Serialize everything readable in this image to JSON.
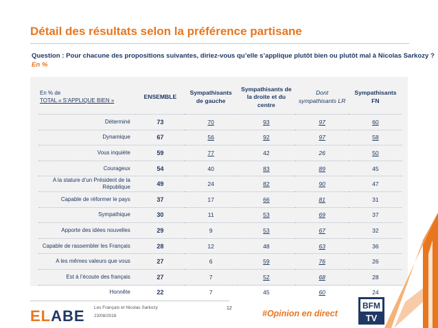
{
  "title": "Détail des résultats selon la préférence partisane",
  "question": "Question : Pour chacune des propositions suivantes, diriez-vous qu’elle s’applique plutôt bien ou plutôt mal à Nicolas Sarkozy ?",
  "question_sub": "En %",
  "table": {
    "header_line1": "En % de",
    "header_line2": "TOTAL « S’APPLIQUE BIEN »",
    "columns": [
      "ENSEMBLE",
      "Sympathisants de gauche",
      "Sympathisants de la droite et du centre",
      "Dont sympathisants LR",
      "Sympathisants FN"
    ],
    "rows": [
      {
        "label": "Déterminé",
        "values": [
          "73",
          "70",
          "93",
          "97",
          "60"
        ],
        "underline": [
          false,
          true,
          true,
          true,
          true
        ]
      },
      {
        "label": "Dynamique",
        "values": [
          "67",
          "56",
          "92",
          "97",
          "58"
        ],
        "underline": [
          false,
          true,
          true,
          true,
          true
        ]
      },
      {
        "label": "Vous inquiète",
        "values": [
          "59",
          "77",
          "42",
          "26",
          "50"
        ],
        "underline": [
          false,
          true,
          false,
          false,
          true
        ]
      },
      {
        "label": "Courageux",
        "values": [
          "54",
          "40",
          "83",
          "89",
          "45"
        ],
        "underline": [
          false,
          false,
          true,
          true,
          false
        ]
      },
      {
        "label": "A la stature d’un Président de la République",
        "values": [
          "49",
          "24",
          "82",
          "90",
          "47"
        ],
        "underline": [
          false,
          false,
          true,
          true,
          false
        ]
      },
      {
        "label": "Capable de réformer le pays",
        "values": [
          "37",
          "17",
          "66",
          "81",
          "31"
        ],
        "underline": [
          false,
          false,
          true,
          true,
          false
        ]
      },
      {
        "label": "Sympathique",
        "values": [
          "30",
          "11",
          "53",
          "69",
          "37"
        ],
        "underline": [
          false,
          false,
          true,
          true,
          false
        ]
      },
      {
        "label": "Apporte des idées nouvelles",
        "values": [
          "29",
          "9",
          "53",
          "67",
          "32"
        ],
        "underline": [
          false,
          false,
          true,
          true,
          false
        ]
      },
      {
        "label": "Capable de rassembler les Français",
        "values": [
          "28",
          "12",
          "48",
          "63",
          "36"
        ],
        "underline": [
          false,
          false,
          false,
          true,
          false
        ]
      },
      {
        "label": "A les mêmes valeurs que vous",
        "values": [
          "27",
          "6",
          "59",
          "76",
          "26"
        ],
        "underline": [
          false,
          false,
          true,
          true,
          false
        ]
      },
      {
        "label": "Est à l’écoute des français",
        "values": [
          "27",
          "7",
          "52",
          "68",
          "28"
        ],
        "underline": [
          false,
          false,
          true,
          true,
          false
        ]
      },
      {
        "label": "Honnête",
        "values": [
          "22",
          "7",
          "45",
          "60",
          "24"
        ],
        "underline": [
          false,
          false,
          false,
          true,
          false
        ]
      }
    ]
  },
  "footer": {
    "logo": "ELABE",
    "study": "Les Français et Nicolas Sarkozy",
    "date": "23/08/2016",
    "page": "12",
    "hashtag": "#Opinion en direct",
    "tv_logo_top": "BFM",
    "tv_logo_bottom": "TV"
  },
  "colors": {
    "accent": "#e8761e",
    "text": "#1f3864",
    "table_bg": "#f2f2f2"
  }
}
